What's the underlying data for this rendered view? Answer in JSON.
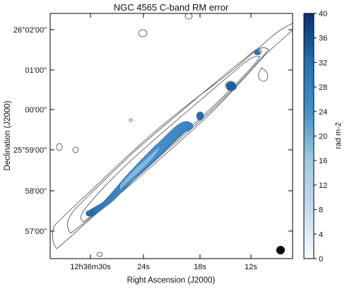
{
  "chart_data": {
    "type": "heatmap",
    "title": "NGC 4565   C-band   RM error",
    "xlabel": "Right Ascension (J2000)",
    "ylabel": "Declination (J2000)",
    "x_ticks": [
      "12h36m30s",
      "24s",
      "18s",
      "12s"
    ],
    "y_ticks": [
      "26°02'00\"",
      "01'00\"",
      "00'00\"",
      "25°59'00\"",
      "58'00\"",
      "57'00\""
    ],
    "colorbar": {
      "label": "rad m-2",
      "range": [
        0,
        40
      ],
      "ticks": [
        "0",
        "4",
        "8",
        "12",
        "16",
        "20",
        "24",
        "28",
        "32",
        "36",
        "40"
      ],
      "color_low": "#f7fbff",
      "color_high": "#08306b"
    },
    "grid": false,
    "contours": true,
    "beam_shown": true,
    "legend": "none"
  }
}
